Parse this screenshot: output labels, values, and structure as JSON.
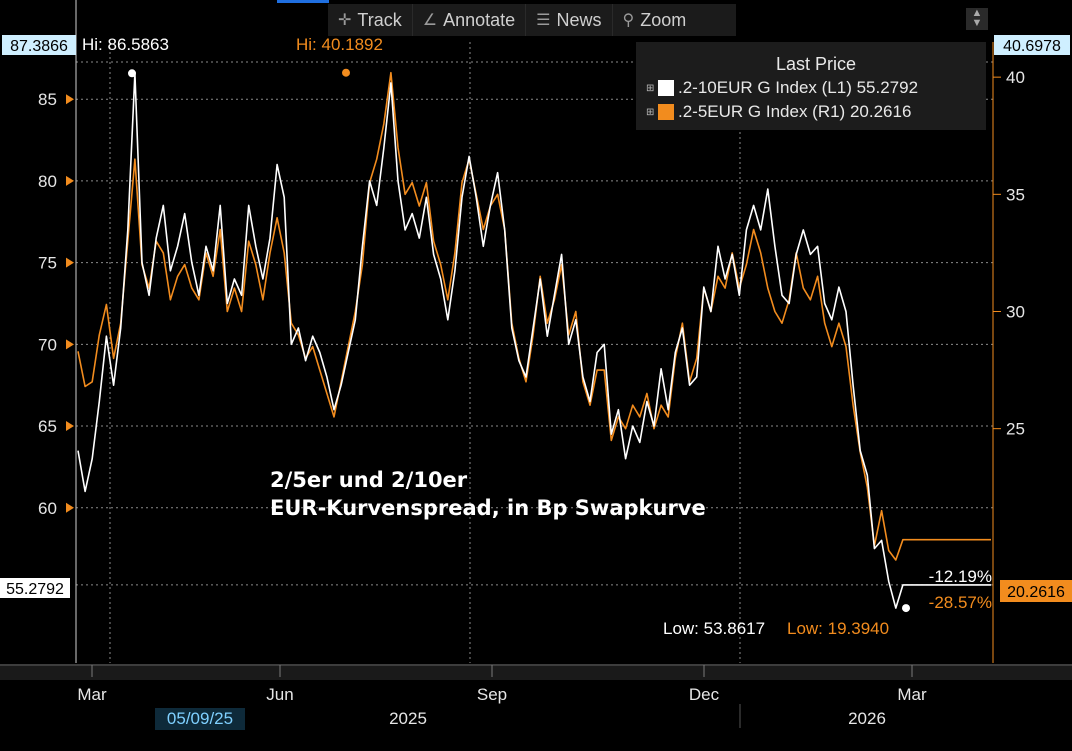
{
  "toolbar": {
    "track_label": "Track",
    "annotate_label": "Annotate",
    "news_label": "News",
    "zoom_label": "Zoom"
  },
  "legend": {
    "header": "Last Price",
    "series1": ".2-10EUR G Index  (L1) 55.2792",
    "series2": ".2-5EUR G Index  (R1)  20.2616"
  },
  "annotation": {
    "line1": "2/5er und 2/10er",
    "line2": "EUR-Kurvenspread, in Bp Swapkurve"
  },
  "labels": {
    "left_top_value": "87.3866",
    "hi_white": "Hi: 86.5863",
    "hi_orange": "Hi: 40.1892",
    "right_top_value": "40.6978",
    "left_last_value": "55.2792",
    "right_last_value": "20.2616",
    "pct_white": "-12.19%",
    "pct_orange": "-28.57%",
    "low_white": "Low: 53.8617",
    "low_orange": "Low: 19.3940",
    "cursor_date": "05/09/25"
  },
  "colors": {
    "white_series": "#ffffff",
    "orange_series": "#f28c1e",
    "grid": "#8a8a8a"
  },
  "chart_data": {
    "type": "line",
    "title": "2/5er und 2/10er EUR-Kurvenspread, in Bp Swapkurve",
    "x_tick_labels": [
      "Mar",
      "Jun",
      "Sep",
      "Dec",
      "Mar"
    ],
    "year_labels": [
      "2025",
      "2026"
    ],
    "left_axis": {
      "ticks": [
        60,
        65,
        70,
        75,
        80,
        85
      ],
      "range": [
        50.5,
        88.5
      ]
    },
    "right_axis": {
      "ticks": [
        25,
        30,
        35,
        40
      ],
      "range": [
        15.0,
        41.5
      ]
    },
    "series": [
      {
        "name": ".2-10EUR G Index (L1)",
        "axis": "left",
        "last": 55.2792,
        "high": 86.5863,
        "low": 53.8617,
        "change_pct": -12.19,
        "values": [
          63.5,
          61.0,
          63.0,
          66.5,
          70.5,
          67.5,
          71.0,
          77.0,
          86.5863,
          75.0,
          73.0,
          76.5,
          78.5,
          74.5,
          76.0,
          78.0,
          75.0,
          73.0,
          76.0,
          74.5,
          78.5,
          72.5,
          74.0,
          73.0,
          78.5,
          76.0,
          74.0,
          76.5,
          81.0,
          79.0,
          70.0,
          71.0,
          69.0,
          70.5,
          69.5,
          68.0,
          66.0,
          67.5,
          69.5,
          71.5,
          76.0,
          80.0,
          78.5,
          82.0,
          86.0,
          80.0,
          77.0,
          78.0,
          76.5,
          79.0,
          75.5,
          74.0,
          71.5,
          74.5,
          79.0,
          81.5,
          79.0,
          76.0,
          78.5,
          80.5,
          77.0,
          71.0,
          69.0,
          68.0,
          71.0,
          74.0,
          70.5,
          73.0,
          75.5,
          70.0,
          71.5,
          68.0,
          66.5,
          69.5,
          70.0,
          64.5,
          66.0,
          63.0,
          65.0,
          64.0,
          66.5,
          65.0,
          68.5,
          66.0,
          69.5,
          71.0,
          67.5,
          68.0,
          73.5,
          72.0,
          76.0,
          74.0,
          75.5,
          73.0,
          77.0,
          78.5,
          77.0,
          79.5,
          76.0,
          73.0,
          72.5,
          75.5,
          77.0,
          75.5,
          76.0,
          72.5,
          71.5,
          73.5,
          72.0,
          67.5,
          63.5,
          62.0,
          57.5,
          58.0,
          55.5,
          53.8617,
          55.2792,
          55.2792
        ]
      },
      {
        "name": ".2-5EUR G Index (R1)",
        "axis": "right",
        "last": 20.2616,
        "high": 40.1892,
        "low": 19.394,
        "change_pct": -28.57,
        "values": [
          28.3,
          26.8,
          27.0,
          29.0,
          30.3,
          28.0,
          29.5,
          33.0,
          36.5,
          32.0,
          31.0,
          33.0,
          32.5,
          30.5,
          31.5,
          32.0,
          31.0,
          30.5,
          32.5,
          31.5,
          33.5,
          30.0,
          31.0,
          30.0,
          33.0,
          32.0,
          30.5,
          32.5,
          34.0,
          32.5,
          29.5,
          29.0,
          28.0,
          28.5,
          27.5,
          26.5,
          25.5,
          27.0,
          28.5,
          30.0,
          32.0,
          35.5,
          36.5,
          38.0,
          40.1892,
          37.0,
          35.0,
          35.5,
          34.5,
          35.5,
          33.0,
          32.0,
          30.5,
          32.5,
          35.5,
          36.5,
          35.0,
          33.5,
          34.5,
          35.0,
          33.5,
          29.5,
          28.0,
          27.0,
          29.0,
          31.5,
          29.5,
          30.5,
          32.0,
          29.0,
          30.0,
          27.0,
          26.0,
          27.5,
          27.5,
          24.5,
          25.5,
          25.0,
          26.0,
          25.5,
          26.5,
          25.0,
          26.0,
          25.5,
          28.0,
          29.5,
          27.0,
          28.0,
          31.0,
          30.0,
          31.5,
          31.0,
          32.5,
          31.0,
          32.0,
          33.5,
          32.5,
          31.0,
          30.0,
          29.5,
          30.5,
          32.5,
          31.0,
          30.5,
          31.5,
          29.5,
          28.5,
          29.5,
          28.5,
          26.0,
          24.0,
          22.5,
          20.0,
          21.5,
          19.8,
          19.394,
          20.2616,
          20.2616
        ]
      }
    ]
  }
}
